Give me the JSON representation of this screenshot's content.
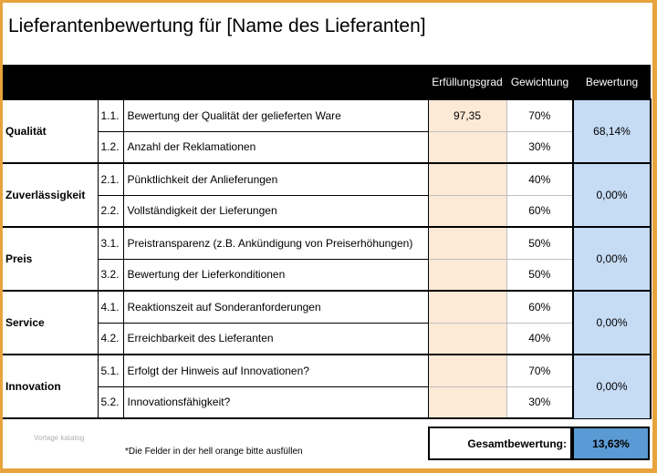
{
  "title": "Lieferantenbewertung für [Name des Lieferanten]",
  "headers": {
    "fulfillment": "Erfüllungsgrad",
    "weighting": "Gewichtung",
    "rating": "Bewertung"
  },
  "groups": [
    {
      "category": "Qualität",
      "rating": "68,14%",
      "rows": [
        {
          "num": "1.1.",
          "desc": "Bewertung der Qualität der gelieferten Ware",
          "fulfillment": "97,35",
          "weight": "70%"
        },
        {
          "num": "1.2.",
          "desc": "Anzahl der Reklamationen",
          "fulfillment": "",
          "weight": "30%"
        }
      ]
    },
    {
      "category": "Zuverlässigkeit",
      "rating": "0,00%",
      "rows": [
        {
          "num": "2.1.",
          "desc": "Pünktlichkeit der Anlieferungen",
          "fulfillment": "",
          "weight": "40%"
        },
        {
          "num": "2.2.",
          "desc": "Vollständigkeit der Lieferungen",
          "fulfillment": "",
          "weight": "60%"
        }
      ]
    },
    {
      "category": "Preis",
      "rating": "0,00%",
      "rows": [
        {
          "num": "3.1.",
          "desc": "Preistransparenz (z.B. Ankündigung von Preiserhöhungen)",
          "fulfillment": "",
          "weight": "50%"
        },
        {
          "num": "3.2.",
          "desc": "Bewertung der Lieferkonditionen",
          "fulfillment": "",
          "weight": "50%"
        }
      ]
    },
    {
      "category": "Service",
      "rating": "0,00%",
      "rows": [
        {
          "num": "4.1.",
          "desc": "Reaktionszeit auf Sonderanforderungen",
          "fulfillment": "",
          "weight": "60%"
        },
        {
          "num": "4.2.",
          "desc": "Erreichbarkeit des Lieferanten",
          "fulfillment": "",
          "weight": "40%"
        }
      ]
    },
    {
      "category": "Innovation",
      "rating": "0,00%",
      "rows": [
        {
          "num": "5.1.",
          "desc": "Erfolgt der Hinweis auf Innovationen?",
          "fulfillment": "",
          "weight": "70%"
        },
        {
          "num": "5.2.",
          "desc": "Innovationsfähigkeit?",
          "fulfillment": "",
          "weight": "30%"
        }
      ]
    }
  ],
  "total": {
    "label": "Gesamtbewertung:",
    "value": "13,63%"
  },
  "footer_note": "*Die Felder in der hell orange bitte ausfüllen",
  "watermark": "Vorlage katalog",
  "colors": {
    "frame": "#e8a33c",
    "input_fill": "#fce9d6",
    "rating_fill": "#c6dbf4",
    "total_fill": "#5b9bd5",
    "header_bg": "#000000"
  }
}
